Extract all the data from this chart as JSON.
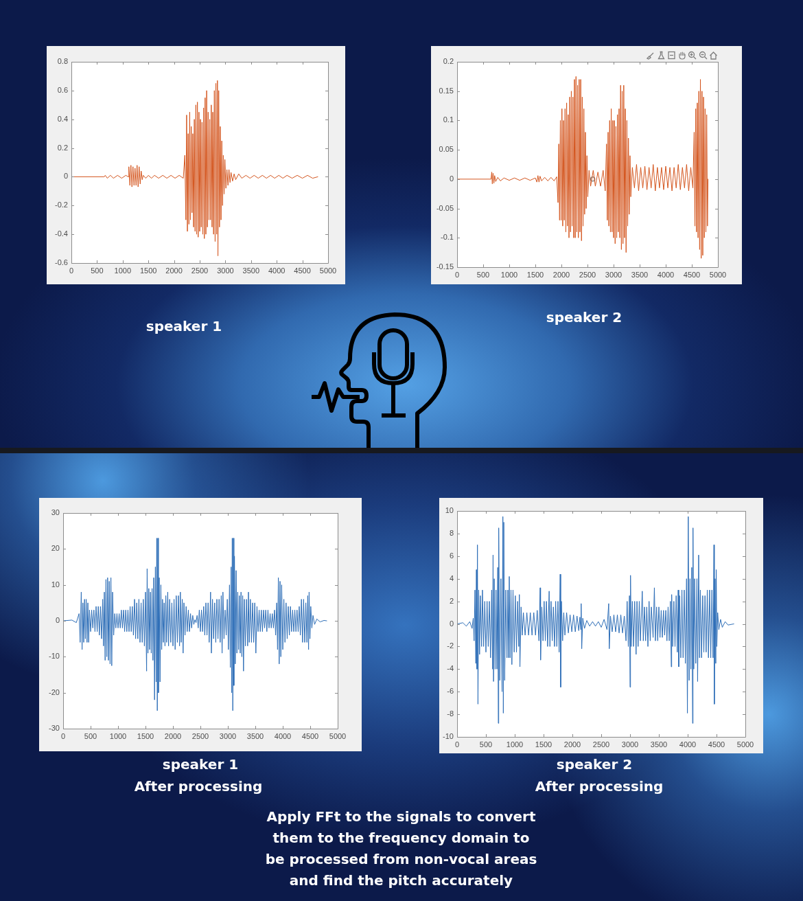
{
  "chart_data": [
    {
      "type": "line",
      "title": "speaker 1",
      "color": "#d4561f",
      "xlim": [
        0,
        5000
      ],
      "xticks": [
        0,
        500,
        1000,
        1500,
        2000,
        2500,
        3000,
        3500,
        4000,
        4500,
        5000
      ],
      "ylim": [
        -0.6,
        0.8
      ],
      "yticks": [
        -0.6,
        -0.4,
        -0.2,
        0,
        0.2,
        0.4,
        0.6,
        0.8
      ],
      "grid": false,
      "legend": false,
      "x": [
        0,
        640,
        660,
        700,
        760,
        820,
        900,
        980,
        1060,
        1110,
        1120,
        1140,
        1160,
        1180,
        1200,
        1220,
        1240,
        1260,
        1280,
        1300,
        1320,
        1340,
        1360,
        1380,
        1400,
        1450,
        1500,
        1560,
        1620,
        1700,
        1780,
        1860,
        1940,
        2020,
        2100,
        2180,
        2210,
        2230,
        2245,
        2260,
        2275,
        2290,
        2305,
        2320,
        2335,
        2350,
        2365,
        2380,
        2395,
        2410,
        2425,
        2440,
        2455,
        2470,
        2485,
        2500,
        2515,
        2530,
        2545,
        2560,
        2575,
        2590,
        2605,
        2620,
        2635,
        2650,
        2665,
        2680,
        2695,
        2710,
        2725,
        2740,
        2755,
        2770,
        2785,
        2800,
        2815,
        2830,
        2845,
        2855,
        2870,
        2885,
        2900,
        2915,
        2930,
        2945,
        2960,
        2975,
        2990,
        3010,
        3030,
        3050,
        3070,
        3090,
        3110,
        3140,
        3170,
        3200,
        3260,
        3320,
        3400,
        3480,
        3560,
        3640,
        3720,
        3800,
        3880,
        3960,
        4040,
        4120,
        4200,
        4300,
        4400,
        4500,
        4600,
        4700,
        4800
      ],
      "values": [
        0,
        0,
        0.01,
        -0.01,
        0.01,
        -0.01,
        0.01,
        -0.01,
        0.01,
        0,
        0.07,
        -0.06,
        0.08,
        -0.07,
        0.07,
        -0.06,
        0.06,
        -0.06,
        0.08,
        -0.07,
        0.07,
        -0.05,
        0.04,
        -0.02,
        0.01,
        -0.01,
        0.01,
        -0.01,
        0.01,
        -0.01,
        0.01,
        -0.01,
        0.01,
        -0.01,
        0.01,
        -0.01,
        0.15,
        -0.3,
        0.43,
        -0.38,
        0.3,
        -0.33,
        0.45,
        -0.3,
        0.35,
        -0.25,
        0.3,
        -0.35,
        0.4,
        -0.38,
        0.5,
        -0.4,
        0.52,
        -0.42,
        0.45,
        -0.38,
        0.4,
        -0.35,
        0.38,
        -0.4,
        0.48,
        -0.43,
        0.55,
        -0.4,
        0.6,
        -0.35,
        0.45,
        -0.3,
        0.4,
        -0.3,
        0.5,
        -0.35,
        0.45,
        -0.4,
        0.6,
        -0.45,
        0.65,
        -0.4,
        0.67,
        -0.55,
        0.6,
        -0.35,
        0.35,
        -0.3,
        0.25,
        -0.2,
        0.15,
        -0.12,
        0.12,
        -0.08,
        0.05,
        -0.06,
        0.05,
        -0.04,
        0.03,
        -0.03,
        0.02,
        -0.02,
        0.02,
        -0.01,
        0.01,
        -0.01,
        0.01,
        -0.01,
        0.01,
        -0.01,
        0.01,
        -0.01,
        0.01,
        -0.01,
        0.01,
        -0.01,
        0.01,
        -0.01,
        0.01,
        -0.01,
        0
      ]
    },
    {
      "type": "line",
      "title": "speaker 2",
      "xlim": [
        0,
        5000
      ],
      "xticks": [
        0,
        500,
        1000,
        1500,
        2000,
        2500,
        3000,
        3500,
        4000,
        4500,
        5000
      ],
      "ylim": [
        -0.15,
        0.2
      ],
      "yticks": [
        -0.15,
        -0.1,
        -0.05,
        0,
        0.05,
        0.1,
        0.15,
        0.2
      ],
      "grid": false,
      "legend": false,
      "series": [
        {
          "color": "#d4561f",
          "x": [
            0,
            650,
            665,
            675,
            690,
            705,
            720,
            740,
            780,
            830,
            900,
            1000,
            1100,
            1200,
            1300,
            1400,
            1500,
            1530,
            1550,
            1570,
            1590,
            1620,
            1680,
            1740,
            1800,
            1860,
            1910,
            1935,
            1950,
            1965,
            1980,
            1995,
            2010,
            2025,
            2040,
            2055,
            2070,
            2085,
            2100,
            2115,
            2130,
            2145,
            2160,
            2175,
            2190,
            2205,
            2220,
            2235,
            2250,
            2265,
            2280,
            2295,
            2310,
            2325,
            2340,
            2355,
            2370,
            2385,
            2400,
            2415,
            2430,
            2445,
            2460,
            2475,
            2490,
            2505,
            2530,
            2560,
            2610,
            2650,
            2700,
            2750,
            2800,
            2840,
            2865,
            2880,
            2895,
            2910,
            2925,
            2940,
            2955,
            2970,
            2985,
            3000,
            3015,
            3030,
            3045,
            3060,
            3075,
            3090,
            3105,
            3120,
            3135,
            3150,
            3165,
            3180,
            3195,
            3210,
            3225,
            3240,
            3255,
            3270,
            3285,
            3300,
            3315,
            3330,
            3360,
            3400,
            3440,
            3480,
            3520,
            3560,
            3600,
            3640,
            3680,
            3720,
            3760,
            3800,
            3840,
            3880,
            3920,
            3960,
            4000,
            4040,
            4080,
            4120,
            4160,
            4200,
            4240,
            4280,
            4320,
            4360,
            4400,
            4440,
            4480,
            4520,
            4545,
            4560,
            4575,
            4590,
            4605,
            4620,
            4635,
            4650,
            4665,
            4680,
            4695,
            4710,
            4725,
            4740,
            4755,
            4770,
            4785,
            4800,
            4810
          ],
          "values": [
            0,
            0,
            0.012,
            -0.008,
            0.01,
            -0.007,
            0.006,
            -0.004,
            0.003,
            -0.003,
            0.002,
            -0.002,
            0.002,
            -0.002,
            0.002,
            -0.002,
            0.002,
            -0.005,
            0.006,
            -0.005,
            0.005,
            -0.003,
            0.003,
            -0.003,
            0.003,
            -0.003,
            0.004,
            -0.04,
            0.06,
            -0.07,
            0.1,
            -0.07,
            0.12,
            -0.08,
            0.1,
            -0.07,
            0.12,
            -0.09,
            0.13,
            -0.08,
            0.11,
            -0.1,
            0.14,
            -0.09,
            0.15,
            -0.08,
            0.14,
            -0.1,
            0.17,
            -0.1,
            0.175,
            -0.09,
            0.16,
            -0.1,
            0.17,
            -0.09,
            0.17,
            -0.105,
            0.14,
            -0.08,
            0.12,
            -0.06,
            0.08,
            -0.05,
            0.04,
            -0.03,
            0.015,
            -0.012,
            0.015,
            -0.012,
            0.012,
            -0.012,
            0.015,
            -0.02,
            0.06,
            -0.07,
            0.08,
            -0.08,
            0.1,
            -0.09,
            0.12,
            -0.09,
            0.1,
            -0.1,
            0.1,
            -0.11,
            0.09,
            -0.1,
            0.11,
            -0.09,
            0.12,
            -0.1,
            0.16,
            -0.12,
            0.15,
            -0.11,
            0.16,
            -0.1,
            0.12,
            -0.125,
            0.1,
            -0.08,
            0.07,
            -0.06,
            0.04,
            -0.03,
            0.02,
            -0.015,
            0.025,
            -0.02,
            0.02,
            -0.015,
            0.022,
            -0.018,
            0.02,
            -0.015,
            0.025,
            -0.02,
            0.02,
            -0.015,
            0.02,
            -0.018,
            0.022,
            -0.015,
            0.02,
            -0.02,
            0.02,
            -0.015,
            0.025,
            -0.018,
            0.02,
            -0.015,
            0.025,
            -0.02,
            0.02,
            -0.015,
            0.08,
            -0.08,
            0.12,
            -0.09,
            0.13,
            -0.1,
            0.15,
            -0.12,
            0.17,
            -0.135,
            0.15,
            -0.13,
            0.14,
            -0.1,
            0.12,
            -0.09,
            0.11,
            -0.08,
            0
          ]
        },
        {
          "type": "scatter",
          "color": "#8c8c8c",
          "marker": "circle",
          "x": [
            2600
          ],
          "values": [
            0
          ]
        }
      ]
    },
    {
      "type": "line",
      "title": "speaker 1",
      "subtitle": "After processing",
      "color": "#2f6fb8",
      "xlim": [
        0,
        5000
      ],
      "xticks": [
        0,
        500,
        1000,
        1500,
        2000,
        2500,
        3000,
        3500,
        4000,
        4500,
        5000
      ],
      "ylim": [
        -30,
        30
      ],
      "yticks": [
        -30,
        -20,
        -10,
        0,
        10,
        20,
        30
      ],
      "grid": false,
      "legend": false,
      "x": [
        0,
        160,
        240,
        290,
        310,
        330,
        345,
        360,
        375,
        390,
        405,
        420,
        435,
        450,
        465,
        480,
        500,
        520,
        540,
        560,
        580,
        600,
        620,
        640,
        660,
        680,
        700,
        720,
        735,
        750,
        765,
        780,
        795,
        810,
        825,
        840,
        855,
        870,
        885,
        900,
        920,
        940,
        960,
        980,
        1000,
        1020,
        1040,
        1060,
        1080,
        1100,
        1120,
        1140,
        1160,
        1180,
        1200,
        1220,
        1240,
        1260,
        1280,
        1300,
        1320,
        1340,
        1360,
        1380,
        1400,
        1420,
        1440,
        1460,
        1480,
        1500,
        1520,
        1530,
        1545,
        1560,
        1575,
        1590,
        1605,
        1620,
        1635,
        1650,
        1665,
        1680,
        1695,
        1705,
        1715,
        1725,
        1735,
        1750,
        1765,
        1780,
        1795,
        1810,
        1825,
        1840,
        1855,
        1870,
        1885,
        1905,
        1920,
        1940,
        1960,
        1980,
        2000,
        2020,
        2040,
        2060,
        2080,
        2100,
        2120,
        2135,
        2150,
        2170,
        2185,
        2200,
        2220,
        2240,
        2260,
        2280,
        2300,
        2320,
        2340,
        2360,
        2380,
        2400,
        2420,
        2440,
        2460,
        2480,
        2500,
        2520,
        2540,
        2560,
        2580,
        2600,
        2620,
        2640,
        2660,
        2685,
        2700,
        2720,
        2740,
        2760,
        2780,
        2800,
        2820,
        2840,
        2860,
        2880,
        2895,
        2910,
        2930,
        2950,
        2970,
        2990,
        3010,
        3030,
        3045,
        3060,
        3070,
        3080,
        3090,
        3100,
        3110,
        3120,
        3135,
        3150,
        3165,
        3180,
        3195,
        3210,
        3225,
        3240,
        3255,
        3270,
        3285,
        3300,
        3320,
        3340,
        3360,
        3375,
        3390,
        3410,
        3430,
        3450,
        3470,
        3490,
        3510,
        3530,
        3550,
        3570,
        3590,
        3610,
        3630,
        3650,
        3670,
        3690,
        3710,
        3730,
        3750,
        3770,
        3790,
        3810,
        3830,
        3850,
        3870,
        3890,
        3905,
        3920,
        3935,
        3950,
        3965,
        3980,
        4000,
        4020,
        4040,
        4060,
        4080,
        4100,
        4120,
        4140,
        4160,
        4180,
        4200,
        4220,
        4240,
        4260,
        4280,
        4300,
        4320,
        4340,
        4360,
        4380,
        4400,
        4420,
        4440,
        4455,
        4470,
        4480,
        4495,
        4510,
        4530,
        4550,
        4580,
        4620,
        4680,
        4750,
        4800
      ],
      "values": [
        0,
        0.2,
        -0.5,
        2,
        -6,
        8,
        -8,
        5,
        -6,
        6,
        -5,
        6,
        -6,
        5,
        -6,
        3,
        -3,
        3,
        -2,
        3,
        -3,
        4,
        -3,
        4,
        -4,
        4,
        -5,
        6,
        -7,
        8,
        -11,
        11.5,
        -10,
        12,
        -11,
        11,
        -12,
        12,
        -12.5,
        8,
        -4,
        2,
        -2,
        2,
        -2,
        2,
        -2,
        3,
        -2,
        3,
        -3,
        3,
        -3,
        3,
        -3,
        4,
        -3,
        4,
        -4,
        6,
        -5,
        5,
        -5,
        6,
        -6,
        5,
        -6,
        6,
        -7,
        8,
        -14,
        14.5,
        -9,
        9,
        -8,
        8,
        -9,
        9,
        -11,
        12,
        -22,
        15,
        -17,
        23,
        -25,
        23,
        -20,
        12,
        -17,
        10,
        -8,
        6,
        -6,
        5,
        -7,
        7,
        -6,
        8,
        -7,
        6,
        -6,
        5,
        -7,
        6,
        -8,
        7,
        -6,
        7,
        -7,
        8,
        -6,
        6,
        -9,
        5,
        -4,
        4,
        -3,
        3,
        -3,
        2,
        -2,
        1.5,
        -1,
        0.3,
        -0.5,
        1.5,
        -2,
        3,
        -3,
        3,
        -3,
        4,
        -4,
        5,
        -4,
        5,
        -6,
        8,
        -9,
        6,
        -5,
        5,
        -6,
        6,
        -5,
        6,
        -6,
        7,
        -9,
        8,
        -5,
        3,
        -4,
        6,
        -8,
        10,
        -13,
        15,
        -20,
        23,
        -25,
        23,
        -18,
        18,
        -12,
        14,
        -9,
        8,
        -8,
        7,
        -9,
        8,
        -10,
        7,
        -14,
        6,
        -7,
        6,
        -7,
        8,
        -6,
        6,
        -6,
        5,
        -6,
        5,
        -9,
        4,
        -3,
        3,
        -3,
        3,
        -3,
        3,
        -2,
        3,
        -3,
        3,
        -2,
        2,
        -2,
        2,
        -2,
        3,
        -4,
        5,
        -8,
        12,
        -12,
        11,
        -10,
        10,
        -8,
        6,
        -6,
        5,
        -5,
        4,
        -4,
        4,
        -3,
        3,
        -3,
        3,
        -3,
        3,
        -3,
        4,
        -4,
        6,
        -6,
        6,
        -6,
        5,
        -6,
        7,
        -8,
        8,
        -5,
        4,
        -2,
        1.5,
        -1,
        0.5,
        -0.3,
        0.1,
        0
      ]
    },
    {
      "type": "line",
      "title": "speaker 2",
      "subtitle": "After processing",
      "color": "#2f6fb8",
      "xlim": [
        0,
        5000
      ],
      "xticks": [
        0,
        500,
        1000,
        1500,
        2000,
        2500,
        3000,
        3500,
        4000,
        4500,
        5000
      ],
      "ylim": [
        -10,
        10
      ],
      "yticks": [
        -10,
        -8,
        -6,
        -4,
        -2,
        0,
        2,
        4,
        6,
        8,
        10
      ],
      "grid": false,
      "legend": false,
      "x": [
        0,
        100,
        160,
        220,
        260,
        280,
        295,
        310,
        325,
        335,
        345,
        353,
        362,
        375,
        390,
        405,
        425,
        440,
        460,
        480,
        500,
        520,
        540,
        560,
        580,
        600,
        616,
        624,
        632,
        645,
        660,
        675,
        690,
        705,
        715,
        722,
        740,
        760,
        780,
        794,
        802,
        810,
        825,
        845,
        865,
        880,
        895,
        905,
        920,
        935,
        950,
        970,
        990,
        1010,
        1030,
        1050,
        1070,
        1080,
        1090,
        1110,
        1130,
        1150,
        1180,
        1210,
        1240,
        1270,
        1300,
        1330,
        1360,
        1390,
        1420,
        1441,
        1448,
        1470,
        1490,
        1510,
        1530,
        1550,
        1570,
        1597,
        1610,
        1630,
        1650,
        1670,
        1690,
        1710,
        1730,
        1750,
        1770,
        1788,
        1797,
        1810,
        1830,
        1850,
        1870,
        1900,
        1930,
        1960,
        1990,
        2020,
        2050,
        2080,
        2110,
        2130,
        2145,
        2152,
        2162,
        2180,
        2210,
        2250,
        2300,
        2350,
        2400,
        2450,
        2500,
        2550,
        2600,
        2630,
        2640,
        2660,
        2690,
        2720,
        2750,
        2780,
        2810,
        2840,
        2870,
        2900,
        2930,
        2950,
        2970,
        2990,
        3000,
        3008,
        3020,
        3040,
        3060,
        3080,
        3105,
        3120,
        3140,
        3160,
        3180,
        3212,
        3230,
        3250,
        3270,
        3290,
        3310,
        3330,
        3350,
        3370,
        3400,
        3422,
        3440,
        3460,
        3480,
        3500,
        3520,
        3540,
        3560,
        3580,
        3600,
        3620,
        3640,
        3660,
        3680,
        3700,
        3715,
        3722,
        3740,
        3760,
        3780,
        3800,
        3820,
        3835,
        3845,
        3860,
        3880,
        3900,
        3920,
        3940,
        3960,
        3980,
        3995,
        4010,
        4025,
        4040,
        4055,
        4070,
        4085,
        4092,
        4105,
        4120,
        4140,
        4160,
        4172,
        4190,
        4205,
        4220,
        4240,
        4260,
        4280,
        4300,
        4320,
        4340,
        4360,
        4380,
        4400,
        4420,
        4440,
        4455,
        4462,
        4475,
        4487,
        4495,
        4505,
        4520,
        4540,
        4570,
        4600,
        4650,
        4700,
        4800
      ],
      "values": [
        0,
        0.1,
        -0.2,
        0.2,
        -0.4,
        0.5,
        -1.5,
        3,
        -3.5,
        4.8,
        -4,
        7,
        -7.1,
        3,
        -2.7,
        2.5,
        -2,
        3,
        -2,
        2,
        -2.5,
        2,
        -2,
        2,
        -3,
        3,
        -4,
        6.1,
        -5.1,
        4,
        -4,
        3,
        -4,
        5,
        -8.8,
        8.5,
        -5,
        4,
        -6,
        9.5,
        -7.9,
        9,
        -5,
        3,
        -3,
        3,
        -3,
        4.2,
        -3,
        3,
        -3.6,
        3,
        -2.5,
        2.5,
        -2.5,
        2,
        -2,
        2.6,
        -3.8,
        1.5,
        -1,
        1,
        -1,
        1,
        -1,
        1,
        -1,
        1,
        -1,
        1.2,
        -1.5,
        3.2,
        -3.2,
        1.5,
        -1.5,
        2,
        -1.5,
        2,
        -2,
        2.9,
        -2,
        2,
        -1.5,
        1.5,
        -2,
        2,
        -2,
        2,
        -2.5,
        4.4,
        -5.6,
        2,
        -1.5,
        1,
        -1,
        1,
        -0.8,
        0.8,
        -0.7,
        0.8,
        -0.7,
        0.7,
        -0.6,
        0.6,
        -0.5,
        1.8,
        -2.2,
        0.5,
        -0.4,
        0.3,
        -0.2,
        0.2,
        -0.2,
        0.2,
        -0.3,
        0.4,
        -0.5,
        1.8,
        -2.2,
        0.7,
        -0.7,
        0.8,
        -0.7,
        0.8,
        -0.8,
        0.8,
        -0.8,
        0.7,
        -1.5,
        2,
        -2,
        2.5,
        -5.6,
        4.3,
        -2,
        2,
        -2,
        2,
        -2.7,
        2,
        -2,
        2,
        -1.5,
        2.9,
        -1.5,
        1.5,
        -1.5,
        1.5,
        -2,
        2,
        -1.5,
        1.5,
        -1.2,
        3.2,
        -1.5,
        1.5,
        -1.5,
        1.5,
        -1.2,
        1.2,
        -1.2,
        1.2,
        -1,
        1.2,
        -1.5,
        1.5,
        -1.5,
        2,
        -3.8,
        2.6,
        -2,
        2,
        -2,
        2.5,
        -2.5,
        3,
        -3.8,
        2.5,
        -3,
        3,
        -3,
        3,
        -3.5,
        4,
        -7.9,
        9.5,
        -5,
        4,
        -4,
        5,
        -8.8,
        8.5,
        -4,
        4,
        -3.5,
        4,
        -5.1,
        6.1,
        -3,
        3,
        -3,
        2.5,
        -2.5,
        2.5,
        -2.5,
        3,
        -3,
        3,
        -3,
        3,
        -3,
        7,
        -7.1,
        4,
        -3.5,
        4.8,
        -2,
        1,
        -0.5,
        0.4,
        -0.3,
        0.2,
        -0.1,
        0
      ]
    },
    {
      "type": "other",
      "annotations": [
        "Apply FFt to the signals to convert them to the frequency domain to be processed from non-vocal areas and find the pitch accurately"
      ]
    }
  ]
}
